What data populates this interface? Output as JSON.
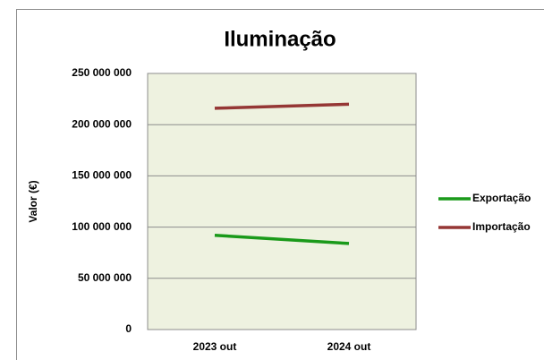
{
  "chart_data": {
    "type": "line",
    "title": "Iluminação",
    "y_label": "Valor (€)",
    "categories": [
      "2023 out",
      "2024 out"
    ],
    "series": [
      {
        "name": "Exportação",
        "color": "#1a9a1a",
        "values": [
          92000000,
          84000000
        ]
      },
      {
        "name": "Importação",
        "color": "#953735",
        "values": [
          216000000,
          220000000
        ]
      }
    ],
    "ylim": [
      0,
      250000000
    ],
    "yticks": [
      {
        "value": 0,
        "label": "0"
      },
      {
        "value": 50000000,
        "label": "50 000 000"
      },
      {
        "value": 100000000,
        "label": "100 000 000"
      },
      {
        "value": 150000000,
        "label": "150 000 000"
      },
      {
        "value": 200000000,
        "label": "200 000 000"
      },
      {
        "value": 250000000,
        "label": "250 000 000"
      }
    ],
    "grid": true,
    "legend": "right"
  }
}
